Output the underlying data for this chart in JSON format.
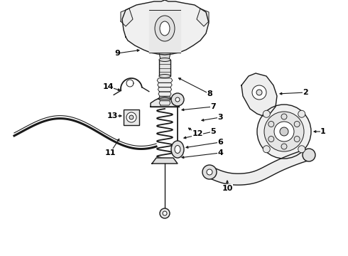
{
  "background_color": "#ffffff",
  "line_color": "#1a1a1a",
  "label_color": "#000000",
  "fig_width": 4.9,
  "fig_height": 3.6,
  "dpi": 100
}
